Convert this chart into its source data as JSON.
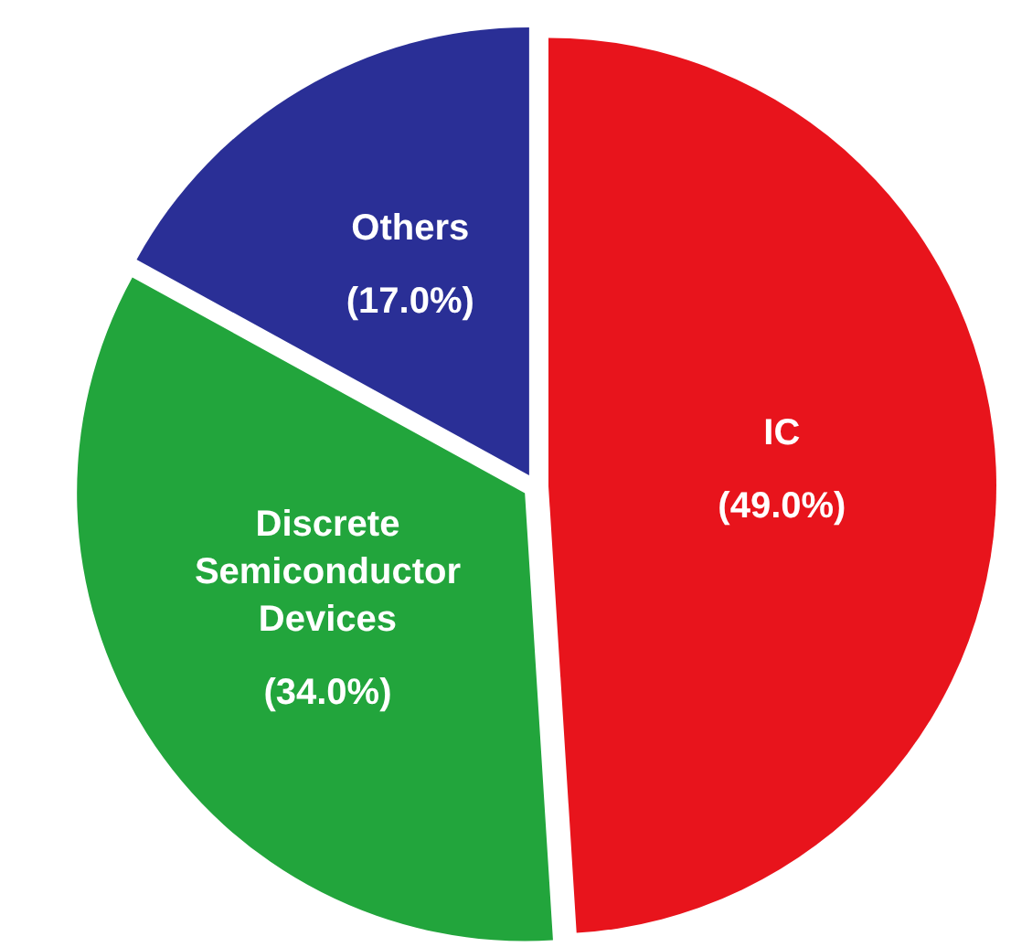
{
  "chart_data": {
    "type": "pie",
    "categories": [
      "IC",
      "Discrete Semiconductor Devices",
      "Others"
    ],
    "values": [
      49,
      34,
      17
    ],
    "colors": [
      "#e8141c",
      "#22a53c",
      "#2a2f96"
    ],
    "value_labels": [
      "(49.0%)",
      "(34.0%)",
      "(17.0%)"
    ]
  }
}
